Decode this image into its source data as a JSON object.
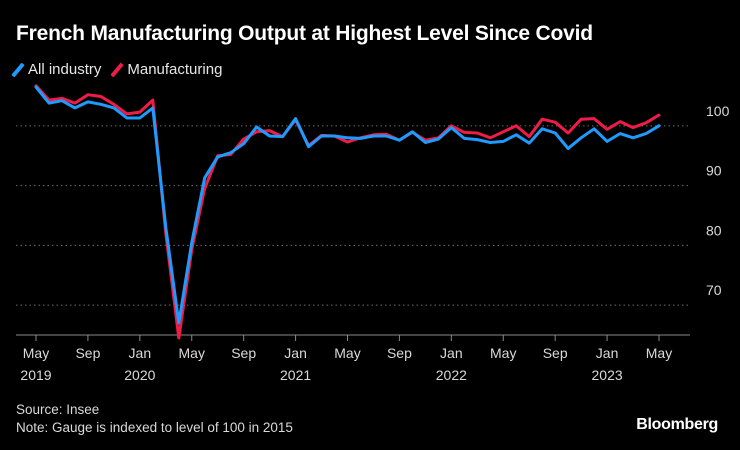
{
  "title": "French Manufacturing Output at Highest Level Since Covid",
  "source": "Source: Insee",
  "note": "Note: Gauge is indexed to level of 100 in 2015",
  "brand": "Bloomberg",
  "colors": {
    "all_industry": "#1f9bff",
    "manufacturing": "#ee1c47",
    "grid": "#6e6e6e",
    "text": "#d9d9d9"
  },
  "chart_data": {
    "type": "line",
    "title": "French Manufacturing Output at Highest Level Since Covid",
    "xlabel": "",
    "ylabel": "",
    "ylim": [
      65,
      108
    ],
    "y_ticks": [
      70,
      80,
      90,
      100
    ],
    "grid": "horizontal dotted",
    "legend": "top-left",
    "x_ticks": [
      {
        "index": 0,
        "month": "May",
        "year": "2019"
      },
      {
        "index": 4,
        "month": "Sep",
        "year": ""
      },
      {
        "index": 8,
        "month": "Jan",
        "year": "2020"
      },
      {
        "index": 12,
        "month": "May",
        "year": ""
      },
      {
        "index": 16,
        "month": "Sep",
        "year": ""
      },
      {
        "index": 20,
        "month": "Jan",
        "year": "2021"
      },
      {
        "index": 24,
        "month": "May",
        "year": ""
      },
      {
        "index": 28,
        "month": "Sep",
        "year": ""
      },
      {
        "index": 32,
        "month": "Jan",
        "year": "2022"
      },
      {
        "index": 36,
        "month": "May",
        "year": ""
      },
      {
        "index": 40,
        "month": "Sep",
        "year": ""
      },
      {
        "index": 44,
        "month": "Jan",
        "year": "2023"
      },
      {
        "index": 48,
        "month": "May",
        "year": ""
      }
    ],
    "x": [
      "2019-05",
      "2019-06",
      "2019-07",
      "2019-08",
      "2019-09",
      "2019-10",
      "2019-11",
      "2019-12",
      "2020-01",
      "2020-02",
      "2020-03",
      "2020-04",
      "2020-05",
      "2020-06",
      "2020-07",
      "2020-08",
      "2020-09",
      "2020-10",
      "2020-11",
      "2020-12",
      "2021-01",
      "2021-02",
      "2021-03",
      "2021-04",
      "2021-05",
      "2021-06",
      "2021-07",
      "2021-08",
      "2021-09",
      "2021-10",
      "2021-11",
      "2021-12",
      "2022-01",
      "2022-02",
      "2022-03",
      "2022-04",
      "2022-05",
      "2022-06",
      "2022-07",
      "2022-08",
      "2022-09",
      "2022-10",
      "2022-11",
      "2022-12",
      "2023-01",
      "2023-02",
      "2023-03",
      "2023-04",
      "2023-05"
    ],
    "series": [
      {
        "name": "All industry",
        "color": "#1f9bff",
        "values": [
          106.5,
          103.8,
          104.2,
          103.0,
          104.0,
          103.6,
          103.0,
          101.3,
          101.3,
          103.0,
          83.0,
          67.0,
          80.5,
          91.3,
          94.8,
          95.5,
          97.0,
          99.8,
          98.3,
          98.2,
          101.2,
          96.5,
          98.3,
          98.3,
          98.0,
          97.9,
          98.3,
          98.3,
          97.6,
          99.0,
          97.2,
          97.8,
          99.7,
          97.9,
          97.7,
          97.2,
          97.4,
          98.5,
          97.1,
          99.5,
          98.8,
          96.2,
          98.0,
          99.5,
          97.4,
          98.7,
          98.0,
          98.7,
          100.0
        ]
      },
      {
        "name": "Manufacturing",
        "color": "#ee1c47",
        "values": [
          106.7,
          104.3,
          104.6,
          103.8,
          105.2,
          104.9,
          103.6,
          102.0,
          102.3,
          104.3,
          82.0,
          64.5,
          79.3,
          89.5,
          95.0,
          95.2,
          97.8,
          99.0,
          99.2,
          98.2,
          101.0,
          96.7,
          98.4,
          98.3,
          97.3,
          98.0,
          98.5,
          98.6,
          97.6,
          98.9,
          97.6,
          98.0,
          100.0,
          98.9,
          98.8,
          98.0,
          99.0,
          100.0,
          98.2,
          101.1,
          100.6,
          98.8,
          101.1,
          101.2,
          99.4,
          100.7,
          99.7,
          100.5,
          101.8
        ]
      }
    ]
  }
}
